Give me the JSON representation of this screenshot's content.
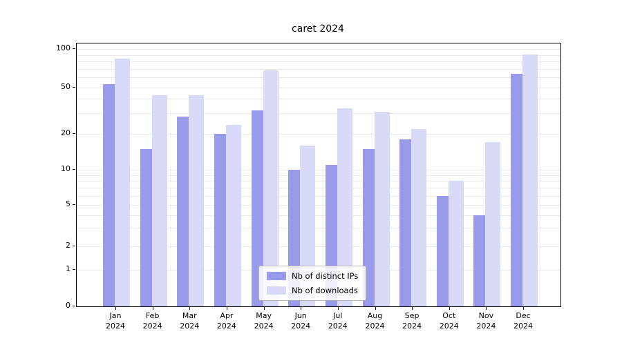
{
  "chart_data": {
    "type": "bar",
    "title": "caret 2024",
    "x_tick_months": [
      "Jan",
      "Feb",
      "Mar",
      "Apr",
      "May",
      "Jun",
      "Jul",
      "Aug",
      "Sep",
      "Oct",
      "Nov",
      "Dec"
    ],
    "x_tick_year": "2024",
    "series": [
      {
        "name": "Nb of distinct IPs",
        "color": "#9a9aea",
        "values": [
          53,
          15,
          28,
          20,
          32,
          10,
          11,
          15,
          18,
          6,
          4,
          64
        ]
      },
      {
        "name": "Nb of downloads",
        "color": "#d9d9f8",
        "values": [
          84,
          43,
          43,
          24,
          68,
          16,
          33,
          31,
          22,
          8,
          17,
          91
        ]
      }
    ],
    "y_ticks": [
      0,
      1,
      2,
      5,
      10,
      20,
      50,
      100
    ],
    "ylim": [
      0,
      100
    ],
    "y_scale": "log-with-zero",
    "grid": "horizontal",
    "legend_position": "lower-center"
  }
}
